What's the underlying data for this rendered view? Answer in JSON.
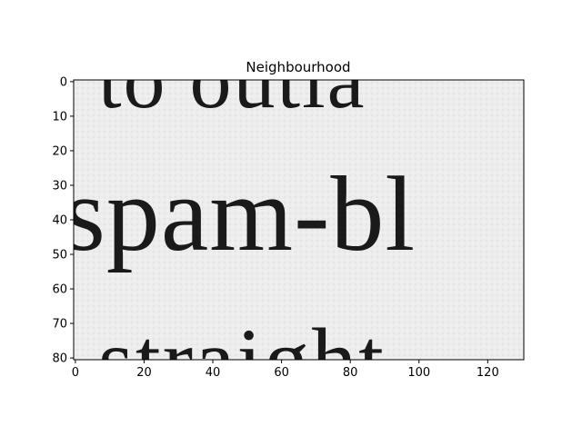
{
  "chart_data": {
    "type": "heatmap",
    "title": "Neighbourhood",
    "colormap": "gray",
    "xlim": [
      0,
      131
    ],
    "ylim": [
      81,
      0
    ],
    "x_ticks": [
      "0",
      "20",
      "40",
      "60",
      "80",
      "100",
      "120"
    ],
    "y_ticks": [
      "0",
      "10",
      "20",
      "30",
      "40",
      "50",
      "60",
      "70",
      "80"
    ],
    "image_text_lines": [
      "to outla",
      "spam-bl",
      "straight"
    ],
    "background_color": "#ececec",
    "ink_color": "#1a1a1a"
  }
}
